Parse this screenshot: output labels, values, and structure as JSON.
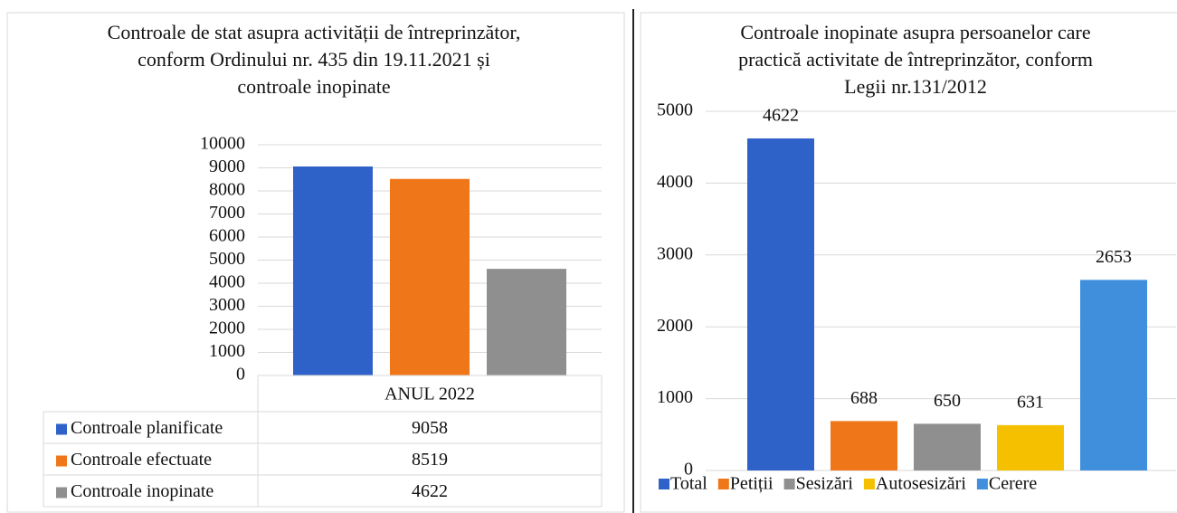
{
  "chart_data": [
    {
      "type": "bar",
      "title": "Controale de stat asupra activității de întreprinzător, conform Ordinului nr. 435 din 19.11.2021 și controale inopinate",
      "categories": [
        "ANUL 2022"
      ],
      "series": [
        {
          "name": "Controale planificate",
          "color": "#2f62c8",
          "values": [
            9058
          ]
        },
        {
          "name": "Controale efectuate",
          "color": "#f0761a",
          "values": [
            8519
          ]
        },
        {
          "name": "Controale inopinate",
          "color": "#8f8f8f",
          "values": [
            4622
          ]
        }
      ],
      "ylim": [
        0,
        10000
      ],
      "yticks": [
        0,
        1000,
        2000,
        3000,
        4000,
        5000,
        6000,
        7000,
        8000,
        9000,
        10000
      ],
      "grid": true,
      "data_table": true
    },
    {
      "type": "bar",
      "title": "Controale inopinate asupra persoanelor care practică activitate de întreprinzător, conform Legii nr.131/2012",
      "categories": [
        "Total",
        "Petiții",
        "Sesizări",
        "Autosesizări",
        "Cerere"
      ],
      "values": [
        4622,
        688,
        650,
        631,
        2653
      ],
      "colors": [
        "#2f62c8",
        "#f0761a",
        "#8f8f8f",
        "#f5c000",
        "#3f8fdc"
      ],
      "ylim": [
        0,
        5000
      ],
      "yticks": [
        0,
        1000,
        2000,
        3000,
        4000,
        5000
      ],
      "grid": true,
      "legend": "bottom",
      "data_labels": true
    }
  ]
}
